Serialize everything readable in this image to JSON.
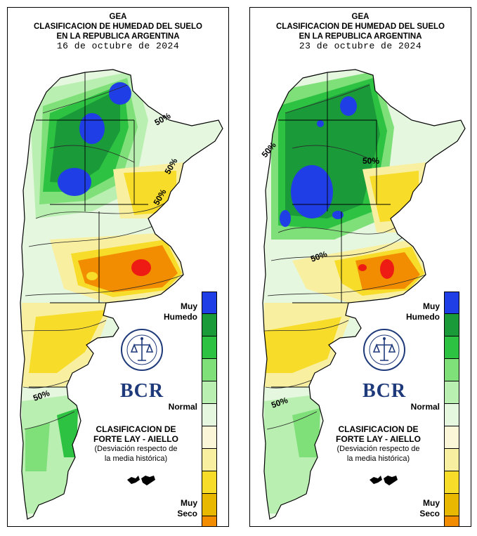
{
  "panels": [
    {
      "title_line1": "GEA",
      "title_line2": "CLASIFICACION DE HUMEDAD DEL SUELO",
      "title_line3": "EN LA REPUBLICA ARGENTINA",
      "date": "16 de octubre de 2024",
      "contour_labels": [
        "50%",
        "50%",
        "50%",
        "50%"
      ]
    },
    {
      "title_line1": "GEA",
      "title_line2": "CLASIFICACION DE HUMEDAD DEL SUELO",
      "title_line3": "EN LA REPUBLICA ARGENTINA",
      "date": "23 de octubre de 2024",
      "contour_labels": [
        "50%",
        "50%",
        "50%",
        "50%"
      ]
    }
  ],
  "legend": {
    "top_label_1": "Muy",
    "top_label_2": "Humedo",
    "mid_label": "Normal",
    "bottom_label_1": "Muy",
    "bottom_label_2": "Seco",
    "colors": [
      "#1f3ee6",
      "#1b9a3a",
      "#2dc241",
      "#7fe07a",
      "#b9efb0",
      "#e6f7e0",
      "#fbf6d8",
      "#f8f0a0",
      "#f7dc2a",
      "#e8b800",
      "#f28c00",
      "#ee1b14"
    ]
  },
  "branding": {
    "logo_text": "BOLSA DE COMERCIO DE ROSARIO",
    "acronym": "BCR"
  },
  "method": {
    "line1": "CLASIFICACION DE",
    "line2": "FORTE LAY - AIELLO",
    "line3": "(Desviación respecto de",
    "line4": "la media histórica)"
  }
}
